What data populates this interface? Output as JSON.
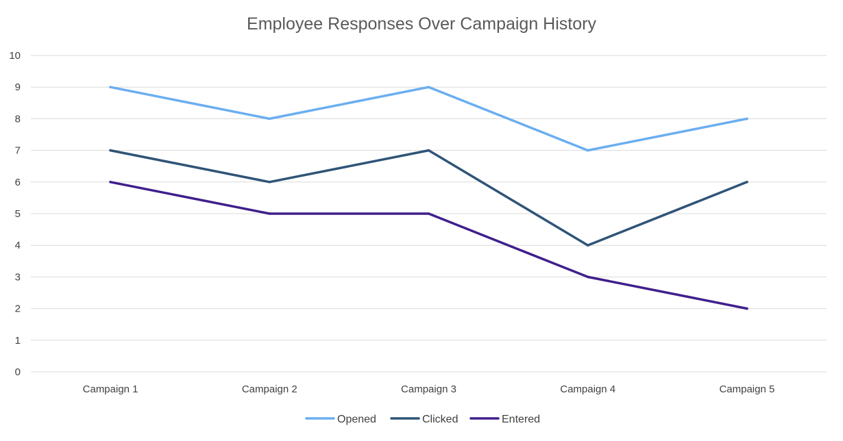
{
  "chart_data": {
    "type": "line",
    "title": "Employee Responses Over Campaign History",
    "xlabel": "",
    "ylabel": "",
    "categories": [
      "Campaign 1",
      "Campaign 2",
      "Campaign 3",
      "Campaign 4",
      "Campaign 5"
    ],
    "ylim": [
      0,
      10
    ],
    "yticks": [
      "0",
      "1",
      "2",
      "3",
      "4",
      "5",
      "6",
      "7",
      "8",
      "9",
      "10"
    ],
    "grid": true,
    "legend": "bottom",
    "series": [
      {
        "name": "Opened",
        "values": [
          9,
          8,
          9,
          7,
          8
        ],
        "color": "#6aaef0"
      },
      {
        "name": "Clicked",
        "values": [
          7,
          6,
          7,
          4,
          6
        ],
        "color": "#2f5477"
      },
      {
        "name": "Entered",
        "values": [
          6,
          5,
          5,
          3,
          2
        ],
        "color": "#3f1f8c"
      }
    ]
  }
}
